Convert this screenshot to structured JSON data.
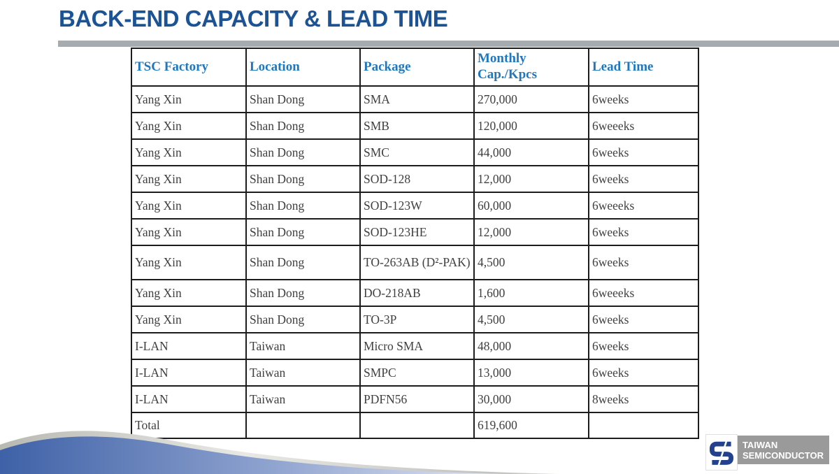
{
  "title": "BACK-END CAPACITY & LEAD TIME",
  "table": {
    "headers": [
      "TSC Factory",
      "Location",
      "Package",
      "Monthly\nCap./Kpcs",
      "Lead Time"
    ],
    "rows": [
      [
        "Yang Xin",
        "Shan Dong",
        "SMA",
        "270,000",
        "6weeks"
      ],
      [
        "Yang Xin",
        "Shan Dong",
        "SMB",
        "120,000",
        "6weeeks"
      ],
      [
        "Yang Xin",
        "Shan Dong",
        "SMC",
        "44,000",
        "6weeks"
      ],
      [
        "Yang Xin",
        "Shan Dong",
        "SOD-128",
        "12,000",
        "6weeks"
      ],
      [
        "Yang Xin",
        "Shan Dong",
        "SOD-123W",
        "60,000",
        "6weeeks"
      ],
      [
        "Yang Xin",
        "Shan Dong",
        "SOD-123HE",
        "12,000",
        "6weeks"
      ],
      [
        "Yang Xin",
        "Shan Dong",
        "TO-263AB (D²-PAK)",
        "4,500",
        "6weeks"
      ],
      [
        "Yang Xin",
        "Shan Dong",
        "DO-218AB",
        "1,600",
        "6weeeks"
      ],
      [
        "Yang Xin",
        "Shan Dong",
        "TO-3P",
        "4,500",
        "6weeks"
      ],
      [
        "I-LAN",
        "Taiwan",
        "Micro SMA",
        "48,000",
        "6weeks"
      ],
      [
        "I-LAN",
        "Taiwan",
        "SMPC",
        "13,000",
        "6weeks"
      ],
      [
        "I-LAN",
        "Taiwan",
        "PDFN56",
        "30,000",
        "8weeks"
      ]
    ],
    "total_row": [
      "Total",
      "",
      "",
      "619,600",
      ""
    ]
  },
  "logo": {
    "line1": "TAIWAN",
    "line2": "SEMICONDUCTOR"
  },
  "colors": {
    "title_blue": "#1B5394",
    "header_blue": "#1F78BE",
    "body_text": "#3F3F3F",
    "rule_gray": "#A6ABAF",
    "logo_gray": "#9A9A9A",
    "logo_blue": "#24418E",
    "swoosh_blue_dark": "#3E61A7",
    "swoosh_blue_light": "#98ABD6",
    "swoosh_silver": "#C8C8C6"
  }
}
